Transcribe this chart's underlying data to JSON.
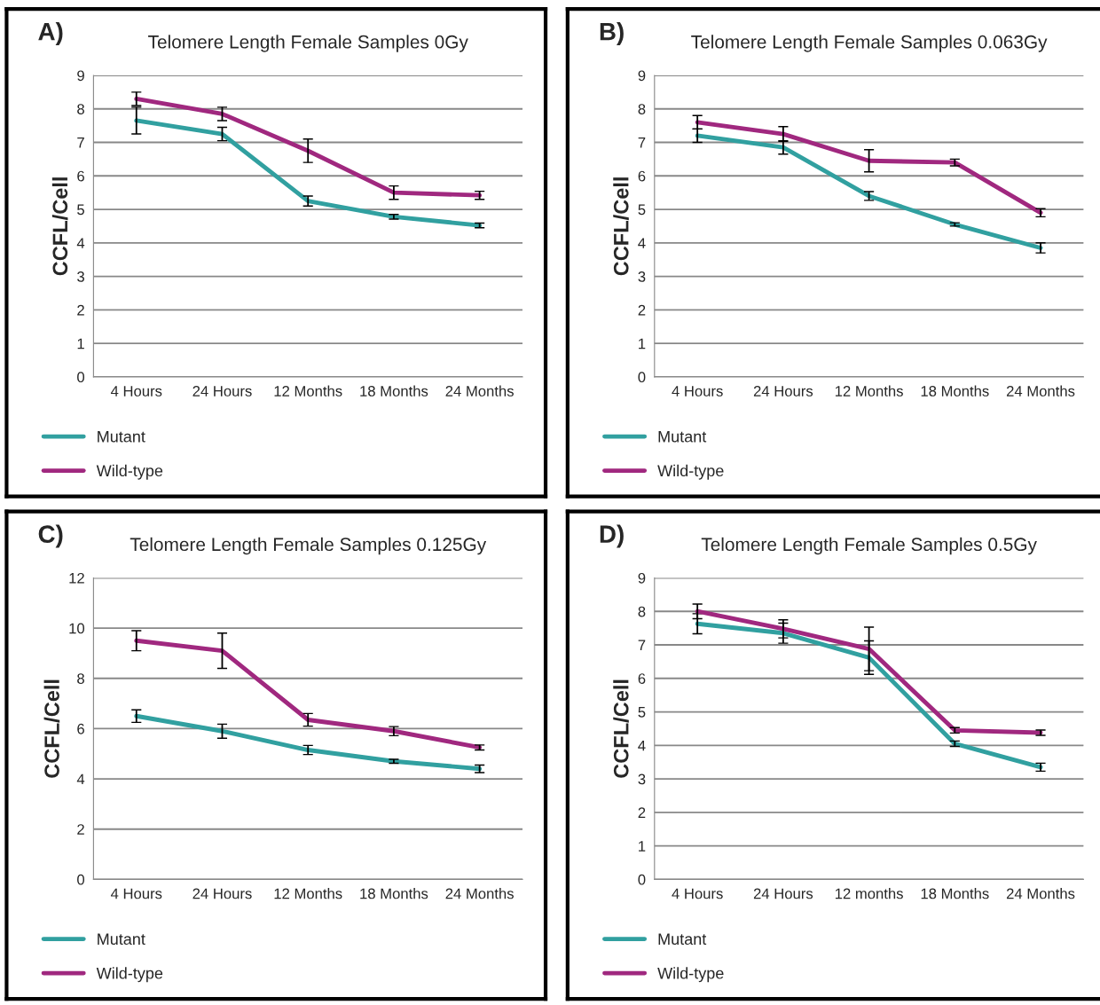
{
  "chart_data": [
    {
      "type": "line",
      "title": "Telomere Length Female Samples 0Gy",
      "ylabel": "CCFL/Cell",
      "annotations": [
        "A)"
      ],
      "categories": [
        "4 Hours",
        "24 Hours",
        "12 Months",
        "18 Months",
        "24 Months"
      ],
      "ylim": [
        0,
        9
      ],
      "yticks": [
        0,
        1,
        2,
        3,
        4,
        5,
        6,
        7,
        8,
        9
      ],
      "grid": "y",
      "legend": "bottom left",
      "series": [
        {
          "name": "Mutant",
          "color": "#31a0a0",
          "values": [
            7.65,
            7.25,
            5.25,
            4.78,
            4.52
          ],
          "errors": [
            0.4,
            0.2,
            0.15,
            0.07,
            0.07
          ]
        },
        {
          "name": "Wild-type",
          "color": "#a0287f",
          "values": [
            8.3,
            7.85,
            6.75,
            5.5,
            5.42
          ],
          "errors": [
            0.2,
            0.2,
            0.35,
            0.2,
            0.12
          ]
        }
      ]
    },
    {
      "type": "line",
      "title": "Telomere Length Female Samples 0.063Gy",
      "ylabel": "CCFL/Cell",
      "annotations": [
        "B)"
      ],
      "categories": [
        "4 Hours",
        "24 Hours",
        "12 Months",
        "18 Months",
        "24 Months"
      ],
      "ylim": [
        0,
        9
      ],
      "yticks": [
        0,
        1,
        2,
        3,
        4,
        5,
        6,
        7,
        8,
        9
      ],
      "grid": "y",
      "legend": "bottom left",
      "series": [
        {
          "name": "Mutant",
          "color": "#31a0a0",
          "values": [
            7.2,
            6.85,
            5.4,
            4.55,
            3.85
          ],
          "errors": [
            0.2,
            0.2,
            0.13,
            0.05,
            0.15
          ]
        },
        {
          "name": "Wild-type",
          "color": "#a0287f",
          "values": [
            7.6,
            7.25,
            6.45,
            6.4,
            4.9
          ],
          "errors": [
            0.2,
            0.22,
            0.33,
            0.1,
            0.12
          ]
        }
      ]
    },
    {
      "type": "line",
      "title": "Telomere Length Female Samples 0.125Gy",
      "ylabel": "CCFL/Cell",
      "annotations": [
        "C)"
      ],
      "categories": [
        "4 Hours",
        "24 Hours",
        "12 Months",
        "18 Months",
        "24 Months"
      ],
      "ylim": [
        0,
        12
      ],
      "yticks": [
        0,
        2,
        4,
        6,
        8,
        10,
        12
      ],
      "grid": "y",
      "legend": "bottom left",
      "series": [
        {
          "name": "Mutant",
          "color": "#31a0a0",
          "values": [
            6.5,
            5.9,
            5.15,
            4.7,
            4.4
          ],
          "errors": [
            0.25,
            0.28,
            0.18,
            0.08,
            0.15
          ]
        },
        {
          "name": "Wild-type",
          "color": "#a0287f",
          "values": [
            9.5,
            9.1,
            6.35,
            5.9,
            5.25
          ],
          "errors": [
            0.4,
            0.7,
            0.25,
            0.18,
            0.1
          ]
        }
      ]
    },
    {
      "type": "line",
      "title": "Telomere Length Female Samples 0.5Gy",
      "ylabel": "CCFL/Cell",
      "annotations": [
        "D)"
      ],
      "categories": [
        "4 Hours",
        "24 Hours",
        "12 months",
        "18 Months",
        "24 Months"
      ],
      "ylim": [
        0,
        9
      ],
      "yticks": [
        0,
        1,
        2,
        3,
        4,
        5,
        6,
        7,
        8,
        9
      ],
      "grid": "y",
      "legend": "bottom left",
      "series": [
        {
          "name": "Mutant",
          "color": "#31a0a0",
          "values": [
            7.63,
            7.35,
            6.62,
            4.05,
            3.35
          ],
          "errors": [
            0.3,
            0.3,
            0.5,
            0.08,
            0.12
          ]
        },
        {
          "name": "Wild-type",
          "color": "#a0287f",
          "values": [
            8.0,
            7.48,
            6.88,
            4.45,
            4.38
          ],
          "errors": [
            0.22,
            0.27,
            0.65,
            0.08,
            0.08
          ]
        }
      ]
    }
  ]
}
